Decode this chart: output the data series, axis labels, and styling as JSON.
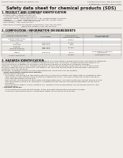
{
  "bg_color": "#f0ede8",
  "title": "Safety data sheet for chemical products (SDS)",
  "header_left": "Product Name: Lithium Ion Battery Cell",
  "header_right_line1": "Substance Number: 98R-049-00010",
  "header_right_line2": "Established / Revision: Dec.7.2016",
  "section1_title": "1. PRODUCT AND COMPANY IDENTIFICATION",
  "section1_lines": [
    " · Product name: Lithium Ion Battery Cell",
    " · Product code: Cylindrical-type cell",
    "    (INR18650, INR18650, INR18650A)",
    " · Company name:  Sanyo Electric Co., Ltd., Mobile Energy Company",
    " · Address:          2001 Kamiakamura, Sumoto-City, Hyogo, Japan",
    " · Telephone number:  +81-799-26-4111",
    " · Fax number:  +81-799-26-4121",
    " · Emergency telephone number (Weekdays) +81-799-26-3962",
    "                                 (Night and holiday) +81-799-26-4101"
  ],
  "section2_title": "2. COMPOSITION / INFORMATION ON INGREDIENTS",
  "section2_sub1": " · Substance or preparation: Preparation",
  "section2_sub2": " · Information about the chemical nature of product:",
  "table_col_labels": [
    "Common chemical name",
    "CAS number",
    "Concentration /\nConcentration range",
    "Classification and\nhazard labeling"
  ],
  "table_sub_label": "Common Name",
  "table_rows": [
    [
      "Lithium cobalt oxide\n(LiMn/Co/Ni/Ox)",
      "-",
      "30-80%",
      "-"
    ],
    [
      "Iron",
      "7439-89-6",
      "10-30%",
      "-"
    ],
    [
      "Aluminum",
      "7429-90-5",
      "2-6%",
      "-"
    ],
    [
      "Graphite\n(Natural graphite)\n(Artificial graphite)",
      "7782-42-5\n7782-44-0",
      "10-25%",
      "-"
    ],
    [
      "Copper",
      "7440-50-8",
      "5-15%",
      "Sensitization of the skin\ngroup No.2"
    ],
    [
      "Organic electrolyte",
      "-",
      "10-20%",
      "Inflammable liquid"
    ]
  ],
  "section3_title": "3. HAZARDS IDENTIFICATION",
  "section3_para": [
    "For the battery cell, chemical materials are stored in a hermetically sealed metal case, designed to withstand",
    "temperatures in practical-use-conditions during normal use. As a result, during normal use, there is no",
    "physical danger of ignition or explosion and thermal danger of hazardous materials leakage.",
    "However, if exposed to a fire, added mechanical shocks, decomposed, when electric-shock may occur,",
    "the gas inside will not be operated. The battery cell case will be breached of fire-pathway, hazardous",
    "materials may be released.",
    "Moreover, if heated strongly by the surrounding fire, some gas may be emitted."
  ],
  "section3_bullet1": " · Most important hazard and effects:",
  "section3_human": "Human health effects:",
  "section3_human_lines": [
    "   Inhalation: The release of the electrolyte has an anesthesia action and stimulates in respiratory tract.",
    "   Skin contact: The release of the electrolyte stimulates a skin. The electrolyte skin contact causes a",
    "   sore and stimulation on the skin.",
    "   Eye contact: The release of the electrolyte stimulates eyes. The electrolyte eye contact causes a sore",
    "   and stimulation on the eye. Especially, a substance that causes a strong inflammation of the eye is",
    "   contained.",
    "   Environmental effects: Since a battery cell remains in the environment, do not throw out it into the",
    "   environment."
  ],
  "section3_bullet2": " · Specific hazards:",
  "section3_specific_lines": [
    "   If the electrolyte contacts with water, it will generate detrimental hydrogen fluoride.",
    "   Since the used electrolyte is inflammable liquid, do not bring close to fire."
  ],
  "line_color": "#aaaaaa",
  "table_header_bg": "#d0cdc8",
  "table_row_bg1": "#ffffff",
  "table_row_bg2": "#e8e5e0",
  "text_dark": "#1a1a1a",
  "text_gray": "#333333"
}
